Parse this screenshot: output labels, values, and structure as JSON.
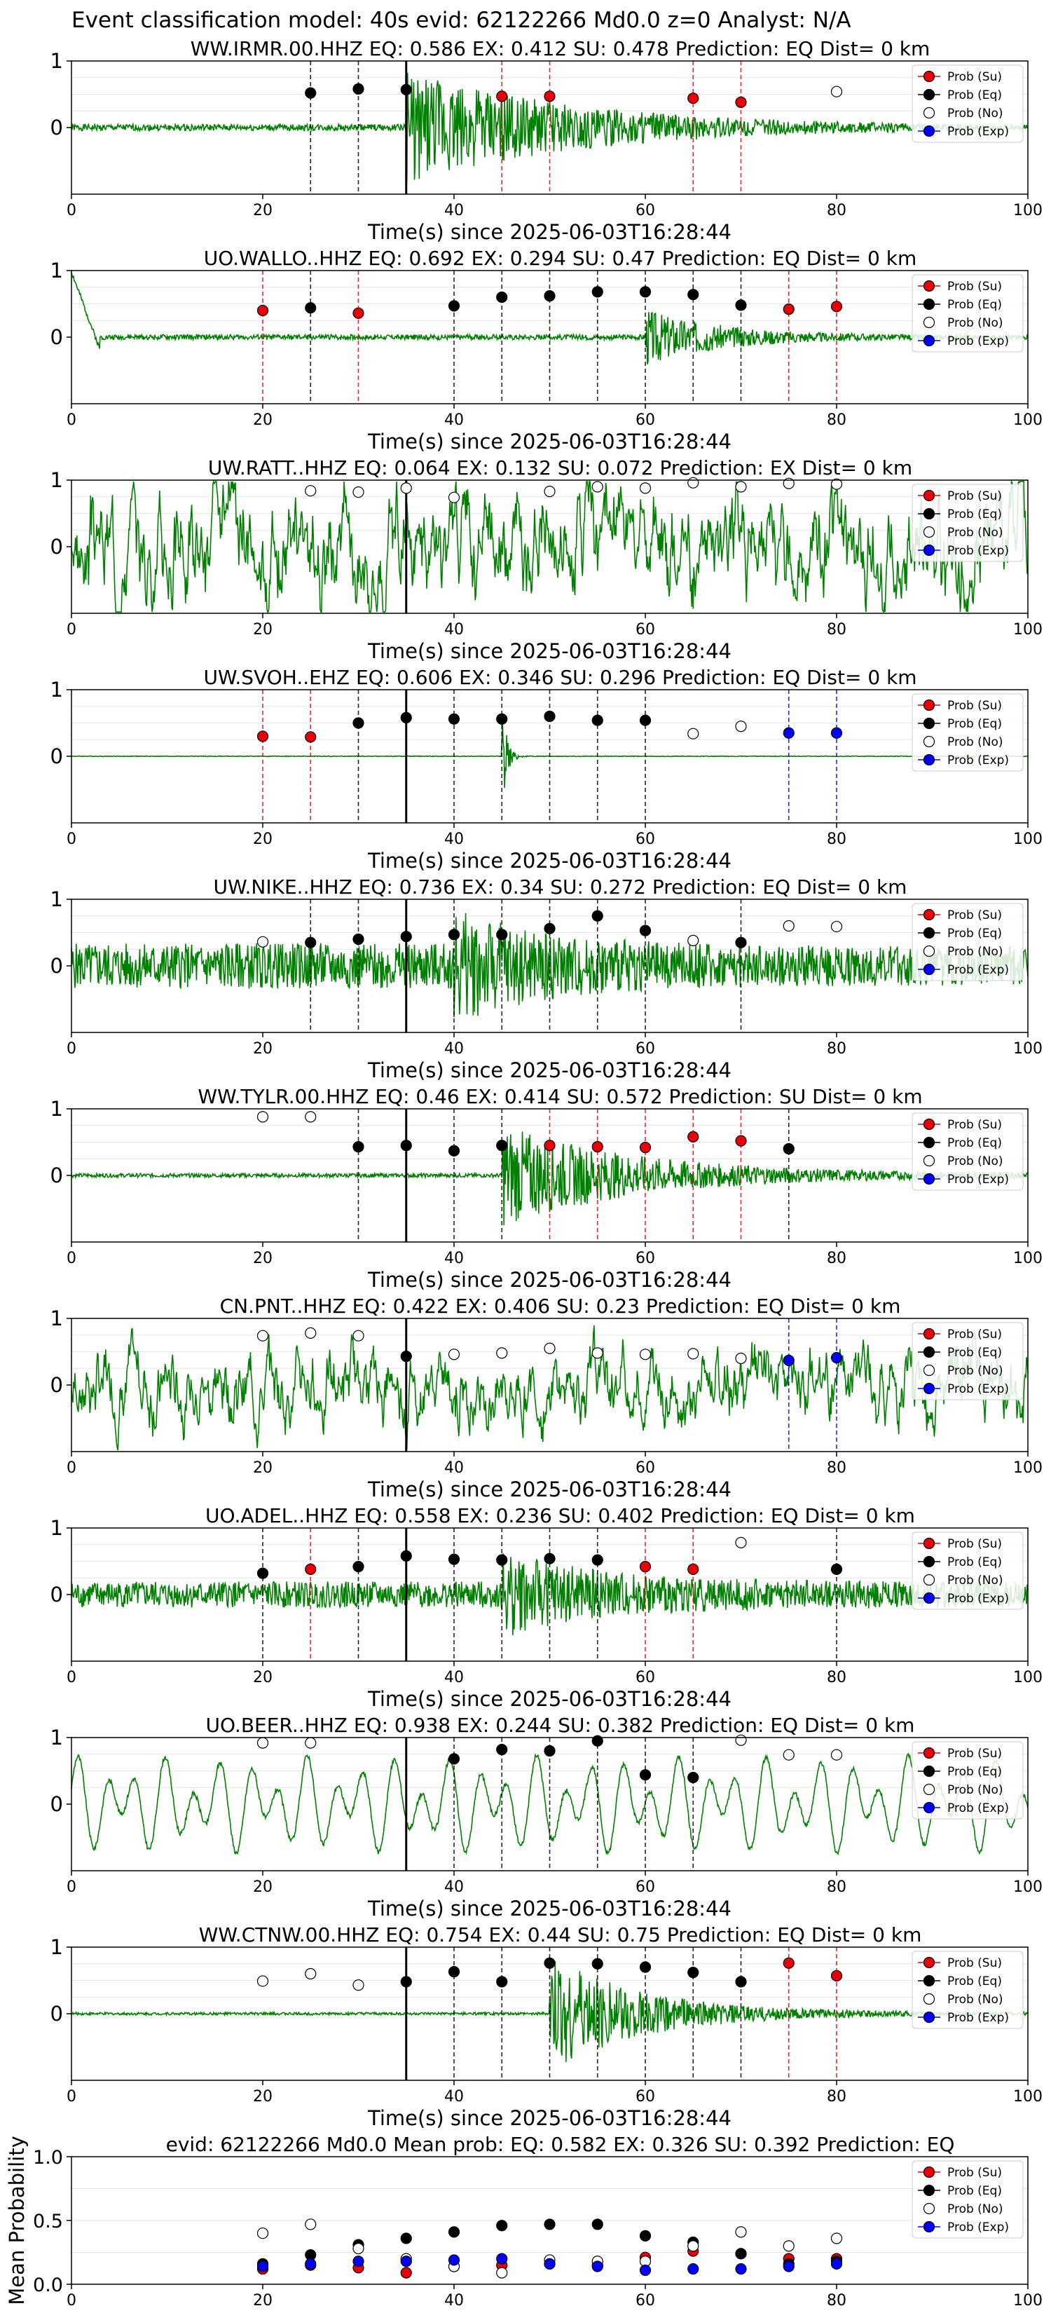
{
  "figure_title": "Event classification model: 40s evid: 62122266 Md0.0 z=0 Analyst: N/A",
  "legend_labels": [
    "Prob (Su)",
    "Prob (Eq)",
    "Prob (No)",
    "Prob (Exp)"
  ],
  "colors": {
    "su": "#e8000b",
    "eq": "#000000",
    "no": "#ffffff",
    "exp": "#0000ff",
    "trace": "#008000",
    "grid": "#e6e6e6",
    "axis": "#000000"
  },
  "chart_data": [
    {
      "type": "line",
      "title": "WW.IRMR.00.HHZ   EQ: 0.586  EX: 0.412  SU: 0.478   Prediction: EQ    Dist= 0 km",
      "xlabel": "Time(s) since 2025-06-03T16:28:44",
      "xlim": [
        0,
        100
      ],
      "ylim": [
        -1,
        1
      ],
      "xticks": [
        0,
        20,
        40,
        60,
        80,
        100
      ],
      "yticks": [
        0,
        1
      ],
      "grid": true,
      "legend_position": "top-right",
      "pick_time": 35,
      "waveform": {
        "style": "burst",
        "pre_amp": 0.05,
        "onset": 35,
        "peak_amp": 0.9,
        "decay": 18,
        "post_amp": 0.02,
        "seed": 1
      },
      "series": [
        {
          "name": "Prob (Su)",
          "x": [
            45,
            50,
            65,
            70
          ],
          "y": [
            0.47,
            0.47,
            0.44,
            0.38
          ]
        },
        {
          "name": "Prob (Eq)",
          "x": [
            25,
            30,
            35
          ],
          "y": [
            0.52,
            0.58,
            0.57
          ]
        },
        {
          "name": "Prob (No)",
          "x": [
            80
          ],
          "y": [
            0.54
          ]
        },
        {
          "name": "Prob (Exp)",
          "x": [],
          "y": []
        }
      ]
    },
    {
      "type": "line",
      "title": "UO.WALLO..HHZ   EQ: 0.692  EX: 0.294  SU: 0.47   Prediction: EQ    Dist= 0 km",
      "xlabel": "Time(s) since 2025-06-03T16:28:44",
      "xlim": [
        0,
        100
      ],
      "ylim": [
        -1,
        1
      ],
      "xticks": [
        0,
        20,
        40,
        60,
        80,
        100
      ],
      "yticks": [
        0,
        1
      ],
      "grid": true,
      "legend_position": "top-right",
      "pick_time": null,
      "waveform": {
        "style": "burst",
        "pre_amp": 0.04,
        "onset": 60,
        "peak_amp": 0.45,
        "decay": 8,
        "post_amp": 0.03,
        "start_spike": true,
        "seed": 2
      },
      "series": [
        {
          "name": "Prob (Su)",
          "x": [
            20,
            30,
            75,
            80
          ],
          "y": [
            0.4,
            0.36,
            0.42,
            0.46
          ]
        },
        {
          "name": "Prob (Eq)",
          "x": [
            25,
            40,
            45,
            50,
            55,
            60,
            65,
            70
          ],
          "y": [
            0.44,
            0.47,
            0.6,
            0.62,
            0.68,
            0.68,
            0.64,
            0.48
          ]
        },
        {
          "name": "Prob (No)",
          "x": [],
          "y": []
        },
        {
          "name": "Prob (Exp)",
          "x": [],
          "y": []
        }
      ]
    },
    {
      "type": "line",
      "title": "UW.RATT..HHZ   EQ: 0.064  EX: 0.132  SU: 0.072   Prediction: EX    Dist= 0 km",
      "xlabel": "Time(s) since 2025-06-03T16:28:44",
      "xlim": [
        0,
        100
      ],
      "ylim": [
        -1,
        1
      ],
      "xticks": [
        0,
        20,
        40,
        60,
        80,
        100
      ],
      "yticks": [
        0,
        1
      ],
      "grid": true,
      "legend_position": "top-right",
      "pick_time": 35,
      "waveform": {
        "style": "noise",
        "amp": 0.9,
        "seed": 3
      },
      "series": [
        {
          "name": "Prob (Su)",
          "x": [],
          "y": []
        },
        {
          "name": "Prob (Eq)",
          "x": [],
          "y": []
        },
        {
          "name": "Prob (No)",
          "x": [
            25,
            30,
            35,
            40,
            50,
            55,
            60,
            65,
            70,
            75,
            80
          ],
          "y": [
            0.84,
            0.82,
            0.88,
            0.74,
            0.83,
            0.9,
            0.88,
            0.96,
            0.9,
            0.95,
            0.94
          ]
        },
        {
          "name": "Prob (Exp)",
          "x": [],
          "y": []
        }
      ]
    },
    {
      "type": "line",
      "title": "UW.SVOH..EHZ   EQ: 0.606  EX: 0.346  SU: 0.296   Prediction: EQ    Dist= 0 km",
      "xlabel": "Time(s) since 2025-06-03T16:28:44",
      "xlim": [
        0,
        100
      ],
      "ylim": [
        -1,
        1
      ],
      "xticks": [
        0,
        20,
        40,
        60,
        80,
        100
      ],
      "yticks": [
        0,
        1
      ],
      "grid": true,
      "legend_position": "top-right",
      "pick_time": 35,
      "waveform": {
        "style": "spike",
        "pre_amp": 0.005,
        "onset": 45,
        "peak_amp": 0.9,
        "decay": 0.5,
        "post_amp": 0.005,
        "seed": 4
      },
      "series": [
        {
          "name": "Prob (Su)",
          "x": [
            20,
            25
          ],
          "y": [
            0.3,
            0.29
          ]
        },
        {
          "name": "Prob (Eq)",
          "x": [
            30,
            35,
            40,
            45,
            50,
            55,
            60
          ],
          "y": [
            0.5,
            0.58,
            0.56,
            0.56,
            0.6,
            0.54,
            0.54
          ]
        },
        {
          "name": "Prob (No)",
          "x": [
            65,
            70
          ],
          "y": [
            0.34,
            0.45
          ]
        },
        {
          "name": "Prob (Exp)",
          "x": [
            75,
            80
          ],
          "y": [
            0.35,
            0.35
          ]
        }
      ]
    },
    {
      "type": "line",
      "title": "UW.NIKE..HHZ   EQ: 0.736  EX: 0.34  SU: 0.272   Prediction: EQ    Dist= 0 km",
      "xlabel": "Time(s) since 2025-06-03T16:28:44",
      "xlim": [
        0,
        100
      ],
      "ylim": [
        -1,
        1
      ],
      "xticks": [
        0,
        20,
        40,
        60,
        80,
        100
      ],
      "yticks": [
        0,
        1
      ],
      "grid": true,
      "legend_position": "top-right",
      "pick_time": 35,
      "waveform": {
        "style": "burst",
        "pre_amp": 0.35,
        "onset": 40,
        "peak_amp": 0.9,
        "decay": 10,
        "post_amp": 0.3,
        "seed": 5
      },
      "series": [
        {
          "name": "Prob (Su)",
          "x": [],
          "y": []
        },
        {
          "name": "Prob (Eq)",
          "x": [
            25,
            30,
            35,
            40,
            45,
            50,
            55,
            60,
            70
          ],
          "y": [
            0.35,
            0.4,
            0.44,
            0.47,
            0.47,
            0.56,
            0.75,
            0.53,
            0.35
          ]
        },
        {
          "name": "Prob (No)",
          "x": [
            20,
            65,
            75,
            80
          ],
          "y": [
            0.36,
            0.38,
            0.6,
            0.59
          ]
        },
        {
          "name": "Prob (Exp)",
          "x": [],
          "y": []
        }
      ]
    },
    {
      "type": "line",
      "title": "WW.TYLR.00.HHZ   EQ: 0.46  EX: 0.414  SU: 0.572   Prediction: SU    Dist= 0 km",
      "xlabel": "Time(s) since 2025-06-03T16:28:44",
      "xlim": [
        0,
        100
      ],
      "ylim": [
        -1,
        1
      ],
      "xticks": [
        0,
        20,
        40,
        60,
        80,
        100
      ],
      "yticks": [
        0,
        1
      ],
      "grid": true,
      "legend_position": "top-right",
      "pick_time": 35,
      "waveform": {
        "style": "burst",
        "pre_amp": 0.03,
        "onset": 45,
        "peak_amp": 0.8,
        "decay": 14,
        "post_amp": 0.03,
        "seed": 6
      },
      "series": [
        {
          "name": "Prob (Su)",
          "x": [
            50,
            55,
            60,
            65,
            70
          ],
          "y": [
            0.45,
            0.43,
            0.42,
            0.58,
            0.52
          ]
        },
        {
          "name": "Prob (Eq)",
          "x": [
            30,
            35,
            40,
            45,
            75
          ],
          "y": [
            0.43,
            0.45,
            0.37,
            0.45,
            0.4
          ]
        },
        {
          "name": "Prob (No)",
          "x": [
            20,
            25
          ],
          "y": [
            0.88,
            0.88
          ]
        },
        {
          "name": "Prob (Exp)",
          "x": [],
          "y": []
        }
      ]
    },
    {
      "type": "line",
      "title": "CN.PNT..HHZ   EQ: 0.422  EX: 0.406  SU: 0.23   Prediction: EQ    Dist= 0 km",
      "xlabel": "Time(s) since 2025-06-03T16:28:44",
      "xlim": [
        0,
        100
      ],
      "ylim": [
        -1,
        1
      ],
      "xticks": [
        0,
        20,
        40,
        60,
        80,
        100
      ],
      "yticks": [
        0,
        1
      ],
      "grid": true,
      "legend_position": "top-right",
      "pick_time": 35,
      "waveform": {
        "style": "noise",
        "amp": 0.6,
        "seed": 7
      },
      "series": [
        {
          "name": "Prob (Su)",
          "x": [],
          "y": []
        },
        {
          "name": "Prob (Eq)",
          "x": [
            35
          ],
          "y": [
            0.43
          ]
        },
        {
          "name": "Prob (No)",
          "x": [
            20,
            25,
            30,
            40,
            45,
            50,
            55,
            60,
            65,
            70
          ],
          "y": [
            0.74,
            0.78,
            0.74,
            0.46,
            0.48,
            0.55,
            0.48,
            0.46,
            0.47,
            0.4
          ]
        },
        {
          "name": "Prob (Exp)",
          "x": [
            75,
            80
          ],
          "y": [
            0.37,
            0.41
          ]
        }
      ]
    },
    {
      "type": "line",
      "title": "UO.ADEL..HHZ   EQ: 0.558  EX: 0.236  SU: 0.402   Prediction: EQ    Dist= 0 km",
      "xlabel": "Time(s) since 2025-06-03T16:28:44",
      "xlim": [
        0,
        100
      ],
      "ylim": [
        -1,
        1
      ],
      "xticks": [
        0,
        20,
        40,
        60,
        80,
        100
      ],
      "yticks": [
        0,
        1
      ],
      "grid": true,
      "legend_position": "top-right",
      "pick_time": 35,
      "waveform": {
        "style": "burst",
        "pre_amp": 0.2,
        "onset": 45,
        "peak_amp": 0.7,
        "decay": 10,
        "post_amp": 0.2,
        "seed": 8
      },
      "series": [
        {
          "name": "Prob (Su)",
          "x": [
            25,
            60,
            65
          ],
          "y": [
            0.38,
            0.42,
            0.38
          ]
        },
        {
          "name": "Prob (Eq)",
          "x": [
            20,
            30,
            35,
            40,
            45,
            50,
            55,
            80
          ],
          "y": [
            0.32,
            0.42,
            0.58,
            0.53,
            0.52,
            0.54,
            0.52,
            0.38
          ]
        },
        {
          "name": "Prob (No)",
          "x": [
            70
          ],
          "y": [
            0.78
          ]
        },
        {
          "name": "Prob (Exp)",
          "x": [],
          "y": []
        }
      ]
    },
    {
      "type": "line",
      "title": "UO.BEER..HHZ   EQ: 0.938  EX: 0.244  SU: 0.382   Prediction: EQ    Dist= 0 km",
      "xlabel": "Time(s) since 2025-06-03T16:28:44",
      "xlim": [
        0,
        100
      ],
      "ylim": [
        -1,
        1
      ],
      "xticks": [
        0,
        20,
        40,
        60,
        80,
        100
      ],
      "yticks": [
        0,
        1
      ],
      "grid": true,
      "legend_position": "top-right",
      "pick_time": 35,
      "waveform": {
        "style": "sine",
        "amp": 0.75,
        "seed": 9
      },
      "series": [
        {
          "name": "Prob (Su)",
          "x": [],
          "y": []
        },
        {
          "name": "Prob (Eq)",
          "x": [
            40,
            45,
            50,
            55,
            60,
            65
          ],
          "y": [
            0.68,
            0.82,
            0.8,
            0.95,
            0.44,
            0.4
          ]
        },
        {
          "name": "Prob (No)",
          "x": [
            20,
            25,
            70,
            75,
            80
          ],
          "y": [
            0.92,
            0.92,
            0.96,
            0.74,
            0.74
          ]
        },
        {
          "name": "Prob (Exp)",
          "x": [],
          "y": []
        }
      ]
    },
    {
      "type": "line",
      "title": "WW.CTNW.00.HHZ   EQ: 0.754  EX: 0.44  SU: 0.75   Prediction: EQ    Dist= 0 km",
      "xlabel": "Time(s) since 2025-06-03T16:28:44",
      "xlim": [
        0,
        100
      ],
      "ylim": [
        -1,
        1
      ],
      "xticks": [
        0,
        20,
        40,
        60,
        80,
        100
      ],
      "yticks": [
        0,
        1
      ],
      "grid": true,
      "legend_position": "top-right",
      "pick_time": 35,
      "waveform": {
        "style": "burst",
        "pre_amp": 0.02,
        "onset": 50,
        "peak_amp": 0.9,
        "decay": 10,
        "post_amp": 0.02,
        "seed": 10
      },
      "series": [
        {
          "name": "Prob (Su)",
          "x": [
            75,
            80
          ],
          "y": [
            0.76,
            0.57
          ]
        },
        {
          "name": "Prob (Eq)",
          "x": [
            35,
            40,
            45,
            50,
            55,
            60,
            65,
            70
          ],
          "y": [
            0.48,
            0.63,
            0.48,
            0.76,
            0.75,
            0.7,
            0.62,
            0.48
          ]
        },
        {
          "name": "Prob (No)",
          "x": [
            20,
            25,
            30
          ],
          "y": [
            0.49,
            0.6,
            0.43
          ]
        },
        {
          "name": "Prob (Exp)",
          "x": [],
          "y": []
        }
      ]
    },
    {
      "type": "scatter",
      "title": "evid: 62122266  Md0.0   Mean prob:   EQ: 0.582  EX: 0.326  SU: 0.392   Prediction: EQ",
      "xlabel": "",
      "ylabel": "Mean Probability",
      "xlim": [
        0,
        100
      ],
      "ylim": [
        0,
        1
      ],
      "xticks": [
        0,
        20,
        40,
        60,
        80,
        100
      ],
      "yticks": [
        0.0,
        0.5,
        1.0
      ],
      "grid": true,
      "legend_position": "top-right",
      "series": [
        {
          "name": "Prob (Su)",
          "x": [
            20,
            25,
            30,
            35,
            40,
            45,
            50,
            55,
            60,
            65,
            70,
            75,
            80
          ],
          "y": [
            0.12,
            0.15,
            0.13,
            0.09,
            0.14,
            0.15,
            0.16,
            0.15,
            0.21,
            0.26,
            0.24,
            0.2,
            0.2
          ]
        },
        {
          "name": "Prob (Eq)",
          "x": [
            20,
            25,
            30,
            35,
            40,
            45,
            50,
            55,
            60,
            65,
            70,
            75,
            80
          ],
          "y": [
            0.16,
            0.23,
            0.31,
            0.36,
            0.41,
            0.46,
            0.47,
            0.47,
            0.38,
            0.33,
            0.24,
            0.16,
            0.18
          ]
        },
        {
          "name": "Prob (No)",
          "x": [
            20,
            25,
            30,
            35,
            40,
            45,
            50,
            55,
            60,
            65,
            70,
            75,
            80
          ],
          "y": [
            0.4,
            0.47,
            0.28,
            0.2,
            0.14,
            0.09,
            0.19,
            0.18,
            0.18,
            0.3,
            0.41,
            0.3,
            0.36
          ]
        },
        {
          "name": "Prob (Exp)",
          "x": [
            20,
            25,
            30,
            35,
            40,
            45,
            50,
            55,
            60,
            65,
            70,
            75,
            80
          ],
          "y": [
            0.14,
            0.16,
            0.18,
            0.18,
            0.19,
            0.2,
            0.16,
            0.14,
            0.11,
            0.12,
            0.12,
            0.14,
            0.16
          ]
        }
      ]
    }
  ]
}
